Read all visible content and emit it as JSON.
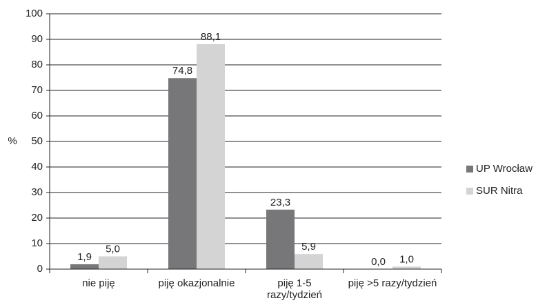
{
  "chart_data": {
    "type": "bar",
    "y_label": "%",
    "categories": [
      "nie piję",
      "piję okazjonalnie",
      "piję 1-5 razy/tydzień",
      "piję >5 razy/tydzień"
    ],
    "series": [
      {
        "name": "UP Wrocław",
        "color": "#77777a",
        "values": [
          1.9,
          74.8,
          23.3,
          0.0
        ],
        "value_labels": [
          "1,9",
          "74,8",
          "23,3",
          "0,0"
        ]
      },
      {
        "name": "SUR Nitra",
        "color": "#d4d4d4",
        "values": [
          5.0,
          88.1,
          5.9,
          1.0
        ],
        "value_labels": [
          "5,0",
          "88,1",
          "5,9",
          "1,0"
        ]
      }
    ],
    "ylim": [
      0,
      100
    ],
    "yticks": [
      0,
      10,
      20,
      30,
      40,
      50,
      60,
      70,
      80,
      90,
      100
    ],
    "grid": true,
    "legend": "right"
  }
}
